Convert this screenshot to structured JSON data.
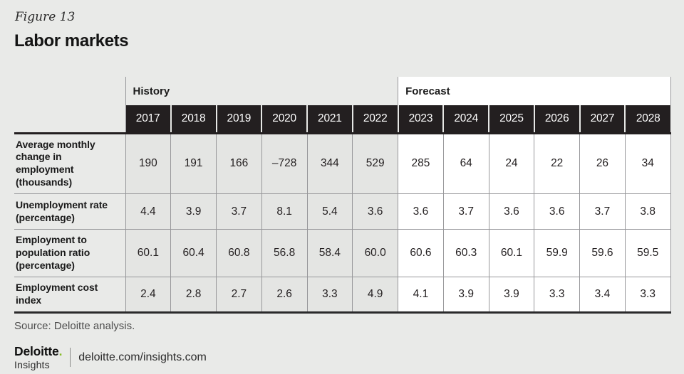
{
  "figure_label": "Figure 13",
  "title": "Labor markets",
  "table": {
    "history_label": "History",
    "forecast_label": "Forecast",
    "years": [
      "2017",
      "2018",
      "2019",
      "2020",
      "2021",
      "2022",
      "2023",
      "2024",
      "2025",
      "2026",
      "2027",
      "2028"
    ],
    "rows": [
      {
        "label": "Average monthly change in employment (thousands)",
        "values": [
          "190",
          "191",
          "166",
          "–728",
          "344",
          "529",
          "285",
          "64",
          "24",
          "22",
          "26",
          "34"
        ]
      },
      {
        "label": "Unemployment rate (percentage)",
        "values": [
          "4.4",
          "3.9",
          "3.7",
          "8.1",
          "5.4",
          "3.6",
          "3.6",
          "3.7",
          "3.6",
          "3.6",
          "3.7",
          "3.8"
        ]
      },
      {
        "label": "Employment to population ratio (percentage)",
        "values": [
          "60.1",
          "60.4",
          "60.8",
          "56.8",
          "58.4",
          "60.0",
          "60.6",
          "60.3",
          "60.1",
          "59.9",
          "59.6",
          "59.5"
        ]
      },
      {
        "label": "Employment cost index",
        "values": [
          "2.4",
          "2.8",
          "2.7",
          "2.6",
          "3.3",
          "4.9",
          "4.1",
          "3.9",
          "3.9",
          "3.3",
          "3.4",
          "3.3"
        ]
      }
    ]
  },
  "source_note": "Source: Deloitte analysis.",
  "footer": {
    "brand_name": "Deloitte",
    "brand_dot": ".",
    "brand_sub": "Insights",
    "url": "deloitte.com/insights.com"
  },
  "colors": {
    "page_bg": "#e9eae8",
    "header_black": "#231f20",
    "history_cell_bg": "#e4e5e3",
    "forecast_cell_bg": "#ffffff",
    "deloitte_green": "#86bc25",
    "gridline_gray": "#97979a"
  },
  "chart_data": {
    "type": "table",
    "figure_label": "Figure 13",
    "title": "Labor markets",
    "column_groups": [
      {
        "label": "History",
        "years": [
          2017,
          2018,
          2019,
          2020,
          2021,
          2022
        ]
      },
      {
        "label": "Forecast",
        "years": [
          2023,
          2024,
          2025,
          2026,
          2027,
          2028
        ]
      }
    ],
    "categories": [
      "2017",
      "2018",
      "2019",
      "2020",
      "2021",
      "2022",
      "2023",
      "2024",
      "2025",
      "2026",
      "2027",
      "2028"
    ],
    "series": [
      {
        "name": "Average monthly change in employment (thousands)",
        "values": [
          190,
          191,
          166,
          -728,
          344,
          529,
          285,
          64,
          24,
          22,
          26,
          34
        ]
      },
      {
        "name": "Unemployment rate (percentage)",
        "values": [
          4.4,
          3.9,
          3.7,
          8.1,
          5.4,
          3.6,
          3.6,
          3.7,
          3.6,
          3.6,
          3.7,
          3.8
        ]
      },
      {
        "name": "Employment to population ratio (percentage)",
        "values": [
          60.1,
          60.4,
          60.8,
          56.8,
          58.4,
          60.0,
          60.6,
          60.3,
          60.1,
          59.9,
          59.6,
          59.5
        ]
      },
      {
        "name": "Employment cost index",
        "values": [
          2.4,
          2.8,
          2.7,
          2.6,
          3.3,
          4.9,
          4.1,
          3.9,
          3.9,
          3.3,
          3.4,
          3.3
        ]
      }
    ],
    "source": "Source: Deloitte analysis.",
    "legend_position": "none",
    "grid": true
  }
}
